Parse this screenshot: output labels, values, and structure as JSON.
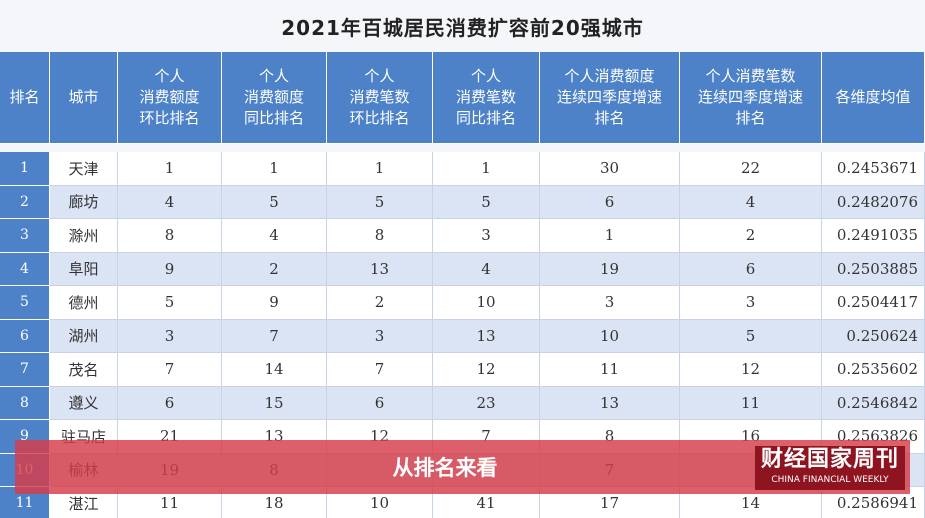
{
  "title": "2021年百城居民消费扩容前20强城市",
  "table": {
    "header": [
      [
        "排名"
      ],
      [
        "城市"
      ],
      [
        "个人",
        "消费额度",
        "环比排名"
      ],
      [
        "个人",
        "消费额度",
        "同比排名"
      ],
      [
        "个人",
        "消费笔数",
        "环比排名"
      ],
      [
        "个人",
        "消费笔数",
        "同比排名"
      ],
      [
        "个人消费额度",
        "连续四季度增速",
        "排名"
      ],
      [
        "个人消费笔数",
        "连续四季度增速",
        "排名"
      ],
      [
        "各维度均值"
      ]
    ],
    "rows": [
      [
        "1",
        "天津",
        "1",
        "1",
        "1",
        "1",
        "30",
        "22",
        "0.2453671"
      ],
      [
        "2",
        "廊坊",
        "4",
        "5",
        "5",
        "5",
        "6",
        "4",
        "0.2482076"
      ],
      [
        "3",
        "滁州",
        "8",
        "4",
        "8",
        "3",
        "1",
        "2",
        "0.2491035"
      ],
      [
        "4",
        "阜阳",
        "9",
        "2",
        "13",
        "4",
        "19",
        "6",
        "0.2503885"
      ],
      [
        "5",
        "德州",
        "5",
        "9",
        "2",
        "10",
        "3",
        "3",
        "0.2504417"
      ],
      [
        "6",
        "湖州",
        "3",
        "7",
        "3",
        "13",
        "10",
        "5",
        "0.250624"
      ],
      [
        "7",
        "茂名",
        "7",
        "14",
        "7",
        "12",
        "11",
        "12",
        "0.2535602"
      ],
      [
        "8",
        "遵义",
        "6",
        "15",
        "6",
        "23",
        "13",
        "11",
        "0.2546842"
      ],
      [
        "9",
        "驻马店",
        "21",
        "13",
        "12",
        "7",
        "8",
        "16",
        "0.2563826"
      ],
      [
        "10",
        "榆林",
        "19",
        "8",
        null,
        null,
        "7",
        null,
        null
      ],
      [
        "11",
        "湛江",
        "11",
        "18",
        "10",
        "41",
        "17",
        "14",
        "0.2586941"
      ]
    ]
  },
  "banner": "从排名来看",
  "logo": {
    "name": "财经国家周刊",
    "english": "CHINA FINANCIAL WEEKLY"
  }
}
